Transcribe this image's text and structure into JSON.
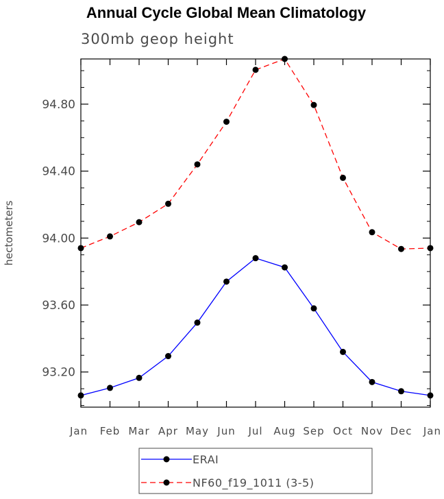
{
  "chart_data": {
    "type": "line",
    "title": "Annual Cycle Global Mean Climatology",
    "subtitle": "300mb geop height",
    "xlabel": "",
    "ylabel": "hectometers",
    "categories": [
      "Jan",
      "Feb",
      "Mar",
      "Apr",
      "May",
      "Jun",
      "Jul",
      "Aug",
      "Sep",
      "Oct",
      "Nov",
      "Dec",
      "Jan"
    ],
    "ylim": [
      92.99,
      95.07
    ],
    "yticks": [
      93.2,
      93.6,
      94.0,
      94.4,
      94.8
    ],
    "ytick_labels": [
      "93.20",
      "93.60",
      "94.00",
      "94.40",
      "94.80"
    ],
    "y_minor_step": 0.1,
    "grid": false,
    "legend_position": "bottom-center",
    "series": [
      {
        "name": "ERAI",
        "color": "#0000ff",
        "line_style": "solid",
        "marker": "filled-circle",
        "values": [
          93.06,
          93.105,
          93.165,
          93.295,
          93.495,
          93.74,
          93.88,
          93.825,
          93.58,
          93.32,
          93.14,
          93.085,
          93.06
        ]
      },
      {
        "name": "NF60_f19_1011 (3-5)",
        "color": "#ff0000",
        "line_style": "dashed",
        "marker": "filled-circle",
        "values": [
          93.94,
          94.01,
          94.095,
          94.205,
          94.44,
          94.695,
          95.005,
          95.07,
          94.795,
          94.36,
          94.035,
          93.935,
          93.94
        ]
      }
    ]
  }
}
